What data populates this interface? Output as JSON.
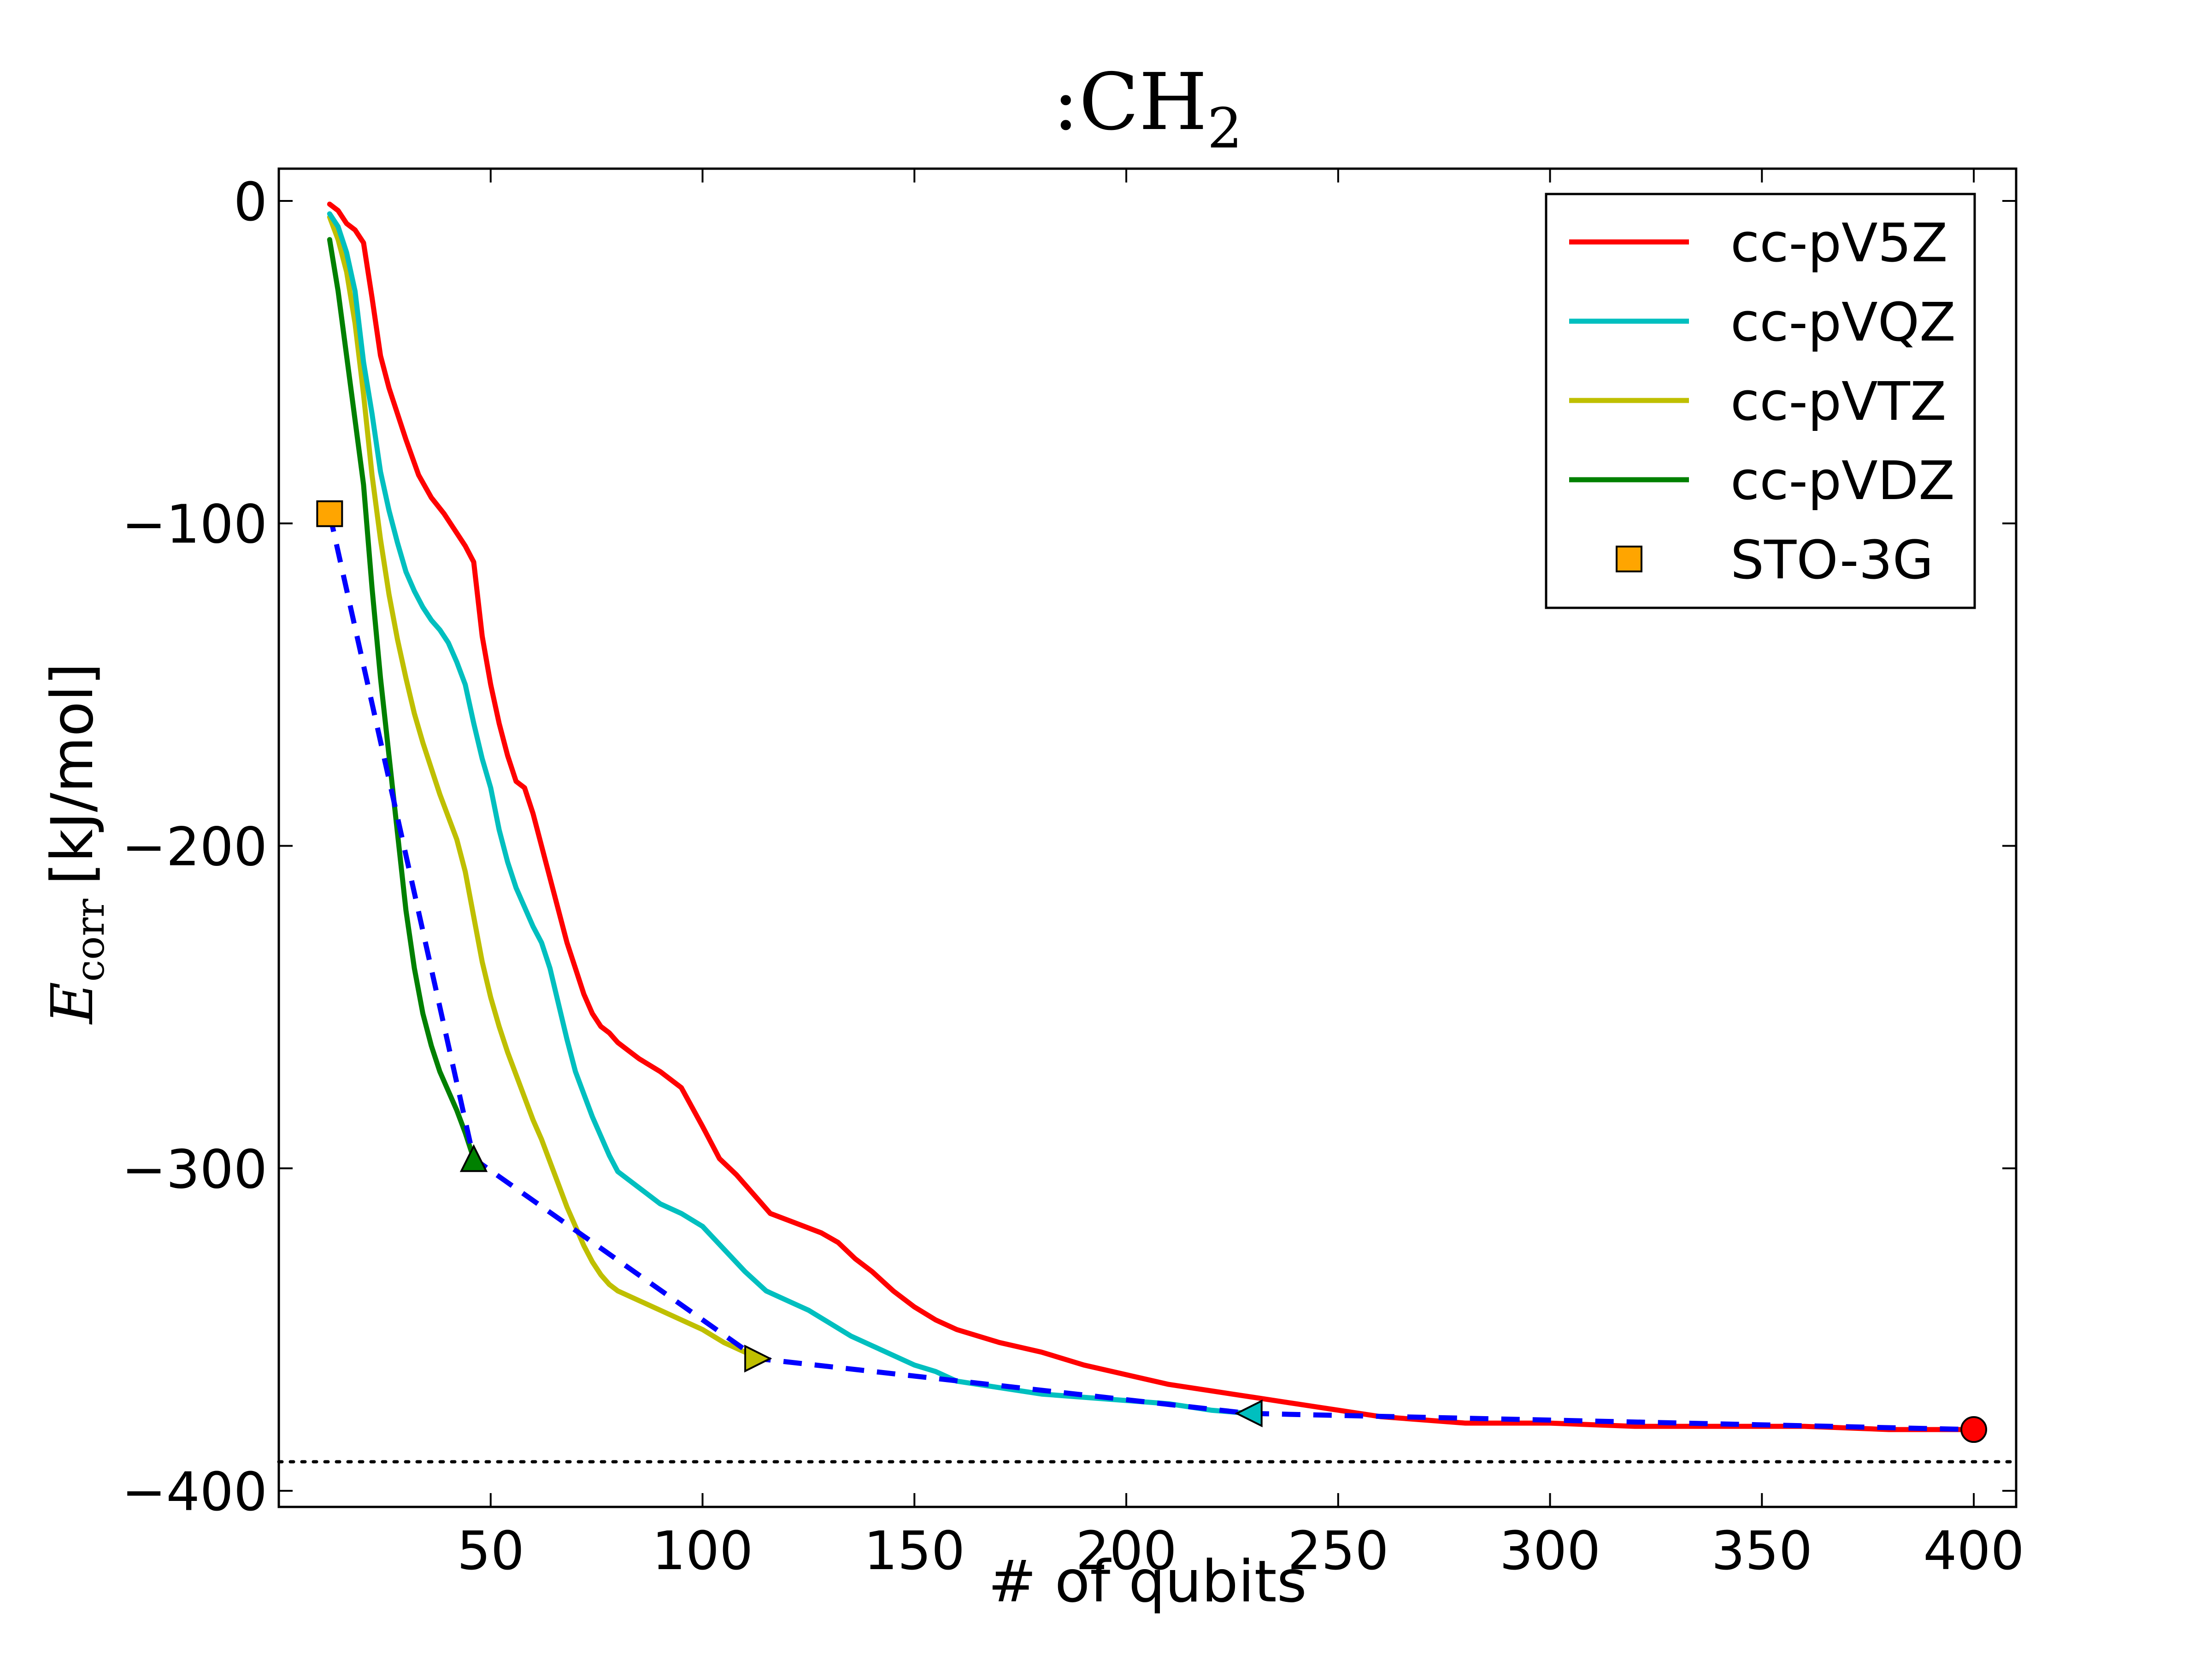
{
  "chart_data": {
    "type": "line",
    "title": ":CH",
    "title_subscript": "2",
    "xlabel": "# of qubits",
    "ylabel_main": "E",
    "ylabel_sub": "corr",
    "ylabel_units": "[kJ/mol]",
    "xlim": [
      0,
      410
    ],
    "ylim": [
      -405,
      10
    ],
    "xticks": [
      50,
      100,
      150,
      200,
      250,
      300,
      350,
      400
    ],
    "yticks": [
      0,
      -100,
      -200,
      -300,
      -400
    ],
    "ytick_labels": [
      "0",
      "−100",
      "−200",
      "−300",
      "−400"
    ],
    "legend_position": "top-right",
    "series": [
      {
        "name": "cc-pV5Z",
        "color": "#ff0000",
        "marker": "circle",
        "marker_at": [
          400,
          -381
        ],
        "x": [
          12,
          14,
          16,
          18,
          20,
          22,
          24,
          26,
          28,
          30,
          33,
          36,
          39,
          42,
          44,
          46,
          48,
          50,
          52,
          54,
          56,
          58,
          60,
          62,
          64,
          66,
          68,
          70,
          72,
          74,
          76,
          78,
          80,
          85,
          90,
          95,
          100,
          104,
          108,
          112,
          116,
          120,
          124,
          128,
          132,
          136,
          140,
          145,
          150,
          155,
          160,
          165,
          170,
          180,
          190,
          200,
          210,
          220,
          230,
          240,
          250,
          260,
          270,
          280,
          290,
          300,
          320,
          340,
          360,
          380,
          400
        ],
        "y": [
          -1,
          -3,
          -7,
          -9,
          -13,
          -30,
          -48,
          -58,
          -66,
          -74,
          -85,
          -92,
          -97,
          -103,
          -107,
          -112,
          -135,
          -150,
          -162,
          -172,
          -180,
          -182,
          -190,
          -200,
          -210,
          -220,
          -230,
          -238,
          -246,
          -252,
          -256,
          -258,
          -261,
          -266,
          -270,
          -275,
          -287,
          -297,
          -302,
          -308,
          -314,
          -316,
          -318,
          -320,
          -323,
          -328,
          -332,
          -338,
          -343,
          -347,
          -350,
          -352,
          -354,
          -357,
          -361,
          -364,
          -367,
          -369,
          -371,
          -373,
          -375,
          -377,
          -378,
          -379,
          -379,
          -379,
          -380,
          -380,
          -380,
          -381,
          -381
        ]
      },
      {
        "name": "cc-pVQZ",
        "color": "#00bfbf",
        "marker": "triangle-left",
        "marker_at": [
          229,
          -376
        ],
        "x": [
          12,
          14,
          16,
          18,
          20,
          22,
          24,
          26,
          28,
          30,
          32,
          34,
          36,
          38,
          40,
          42,
          44,
          46,
          48,
          50,
          52,
          54,
          56,
          58,
          60,
          62,
          64,
          66,
          68,
          70,
          72,
          74,
          76,
          78,
          80,
          85,
          90,
          95,
          100,
          105,
          110,
          115,
          120,
          125,
          130,
          135,
          140,
          145,
          150,
          155,
          160,
          170,
          180,
          190,
          200,
          210,
          220,
          229
        ],
        "y": [
          -4,
          -8,
          -16,
          -28,
          -50,
          -66,
          -84,
          -96,
          -106,
          -115,
          -121,
          -126,
          -130,
          -133,
          -137,
          -143,
          -150,
          -162,
          -173,
          -182,
          -195,
          -205,
          -213,
          -219,
          -225,
          -230,
          -238,
          -249,
          -260,
          -270,
          -277,
          -284,
          -290,
          -296,
          -301,
          -306,
          -311,
          -314,
          -318,
          -325,
          -332,
          -338,
          -341,
          -344,
          -348,
          -352,
          -355,
          -358,
          -361,
          -363,
          -366,
          -368,
          -370,
          -371,
          -372,
          -373,
          -375,
          -376
        ]
      },
      {
        "name": "cc-pVTZ",
        "color": "#bfbf00",
        "marker": "triangle-right",
        "marker_at": [
          113,
          -359
        ],
        "x": [
          12,
          14,
          16,
          18,
          20,
          22,
          24,
          26,
          28,
          30,
          32,
          34,
          36,
          38,
          40,
          42,
          44,
          46,
          48,
          50,
          52,
          54,
          56,
          58,
          60,
          62,
          64,
          66,
          68,
          70,
          72,
          74,
          76,
          78,
          80,
          85,
          90,
          95,
          100,
          105,
          110,
          113
        ],
        "y": [
          -5,
          -12,
          -22,
          -38,
          -60,
          -85,
          -105,
          -122,
          -136,
          -148,
          -159,
          -168,
          -176,
          -184,
          -191,
          -198,
          -208,
          -222,
          -236,
          -247,
          -256,
          -264,
          -271,
          -278,
          -285,
          -291,
          -298,
          -305,
          -312,
          -318,
          -324,
          -329,
          -333,
          -336,
          -338,
          -341,
          -344,
          -347,
          -350,
          -354,
          -357,
          -359
        ]
      },
      {
        "name": "cc-pVDZ",
        "color": "#008000",
        "marker": "triangle-up",
        "marker_at": [
          46,
          -297
        ],
        "x": [
          12,
          14,
          16,
          18,
          20,
          22,
          24,
          26,
          28,
          30,
          32,
          34,
          36,
          38,
          40,
          42,
          44,
          46
        ],
        "y": [
          -12,
          -28,
          -48,
          -68,
          -88,
          -120,
          -148,
          -172,
          -196,
          -220,
          -238,
          -252,
          -262,
          -270,
          -276,
          -282,
          -289,
          -297
        ]
      },
      {
        "name": "STO-3G",
        "color": "#ffa500",
        "marker": "square",
        "marker_at": [
          12,
          -97
        ],
        "x": [],
        "y": []
      }
    ],
    "extrapolation": {
      "style": "dashed",
      "color": "#0000ff",
      "x": [
        12,
        46,
        113,
        229,
        400
      ],
      "y": [
        -97,
        -297,
        -359,
        -376,
        -381
      ]
    },
    "reference_line": {
      "style": "dotted",
      "color": "#000000",
      "y": -391
    }
  }
}
